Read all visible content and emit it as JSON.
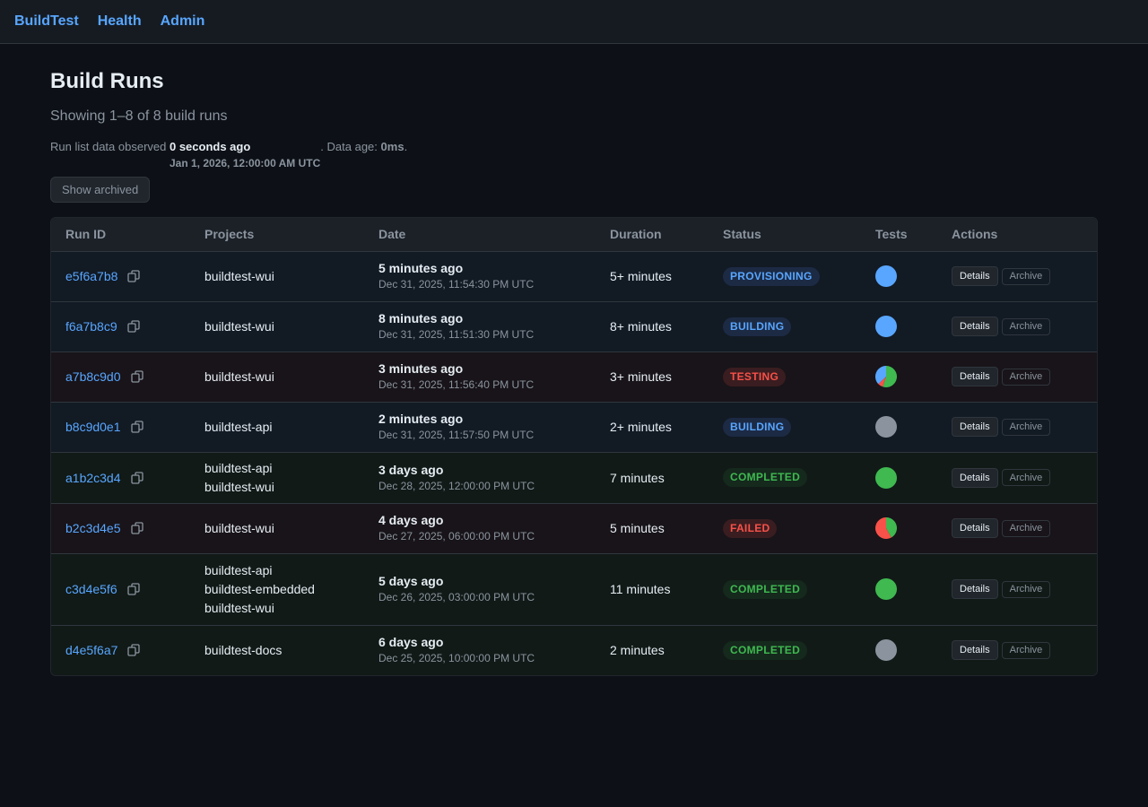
{
  "nav": {
    "brand": "BuildTest",
    "links": [
      "Health",
      "Admin"
    ]
  },
  "page": {
    "title": "Build Runs",
    "subtitle": "Showing 1–8 of 8 build runs",
    "observed_prefix": "Run list data observed",
    "observed_relative": "0 seconds ago",
    "observed_timestamp": "Jan 1, 2026, 12:00:00 AM UTC",
    "data_age_prefix": ". Data age:",
    "data_age_value": "0ms",
    "data_age_suffix": ".",
    "show_archived_label": "Show archived"
  },
  "table": {
    "headers": [
      "Run ID",
      "Projects",
      "Date",
      "Duration",
      "Status",
      "Tests",
      "Actions"
    ],
    "details_label": "Details",
    "archive_label": "Archive",
    "rows": [
      {
        "id": "e5f6a7b8",
        "projects": [
          "buildtest-wui"
        ],
        "date_rel": "5 minutes ago",
        "date_abs": "Dec 31, 2025, 11:54:30 PM UTC",
        "duration": "5+ minutes",
        "status": "PROVISIONING",
        "status_kind": "provisioning",
        "tests": [
          {
            "color": "#58a6ff",
            "frac": 1
          }
        ]
      },
      {
        "id": "f6a7b8c9",
        "projects": [
          "buildtest-wui"
        ],
        "date_rel": "8 minutes ago",
        "date_abs": "Dec 31, 2025, 11:51:30 PM UTC",
        "duration": "8+ minutes",
        "status": "BUILDING",
        "status_kind": "building",
        "tests": [
          {
            "color": "#58a6ff",
            "frac": 1
          }
        ]
      },
      {
        "id": "a7b8c9d0",
        "projects": [
          "buildtest-wui"
        ],
        "date_rel": "3 minutes ago",
        "date_abs": "Dec 31, 2025, 11:56:40 PM UTC",
        "duration": "3+ minutes",
        "status": "TESTING",
        "status_kind": "testing",
        "tests": [
          {
            "color": "#3fb950",
            "frac": 0.55
          },
          {
            "color": "#f85149",
            "frac": 0.08
          },
          {
            "color": "#58a6ff",
            "frac": 0.37
          }
        ]
      },
      {
        "id": "b8c9d0e1",
        "projects": [
          "buildtest-api"
        ],
        "date_rel": "2 minutes ago",
        "date_abs": "Dec 31, 2025, 11:57:50 PM UTC",
        "duration": "2+ minutes",
        "status": "BUILDING",
        "status_kind": "building",
        "tests": [
          {
            "color": "#8b949e",
            "frac": 1
          }
        ]
      },
      {
        "id": "a1b2c3d4",
        "projects": [
          "buildtest-api",
          "buildtest-wui"
        ],
        "date_rel": "3 days ago",
        "date_abs": "Dec 28, 2025, 12:00:00 PM UTC",
        "duration": "7 minutes",
        "status": "COMPLETED",
        "status_kind": "completed",
        "tests": [
          {
            "color": "#3fb950",
            "frac": 1
          }
        ]
      },
      {
        "id": "b2c3d4e5",
        "projects": [
          "buildtest-wui"
        ],
        "date_rel": "4 days ago",
        "date_abs": "Dec 27, 2025, 06:00:00 PM UTC",
        "duration": "5 minutes",
        "status": "FAILED",
        "status_kind": "failed",
        "tests": [
          {
            "color": "#3fb950",
            "frac": 0.42
          },
          {
            "color": "#f85149",
            "frac": 0.58
          }
        ]
      },
      {
        "id": "c3d4e5f6",
        "projects": [
          "buildtest-api",
          "buildtest-embedded",
          "buildtest-wui"
        ],
        "date_rel": "5 days ago",
        "date_abs": "Dec 26, 2025, 03:00:00 PM UTC",
        "duration": "11 minutes",
        "status": "COMPLETED",
        "status_kind": "completed",
        "tests": [
          {
            "color": "#3fb950",
            "frac": 1
          }
        ]
      },
      {
        "id": "d4e5f6a7",
        "projects": [
          "buildtest-docs"
        ],
        "date_rel": "6 days ago",
        "date_abs": "Dec 25, 2025, 10:00:00 PM UTC",
        "duration": "2 minutes",
        "status": "COMPLETED",
        "status_kind": "completed",
        "tests": [
          {
            "color": "#8b949e",
            "frac": 1
          }
        ]
      }
    ]
  }
}
